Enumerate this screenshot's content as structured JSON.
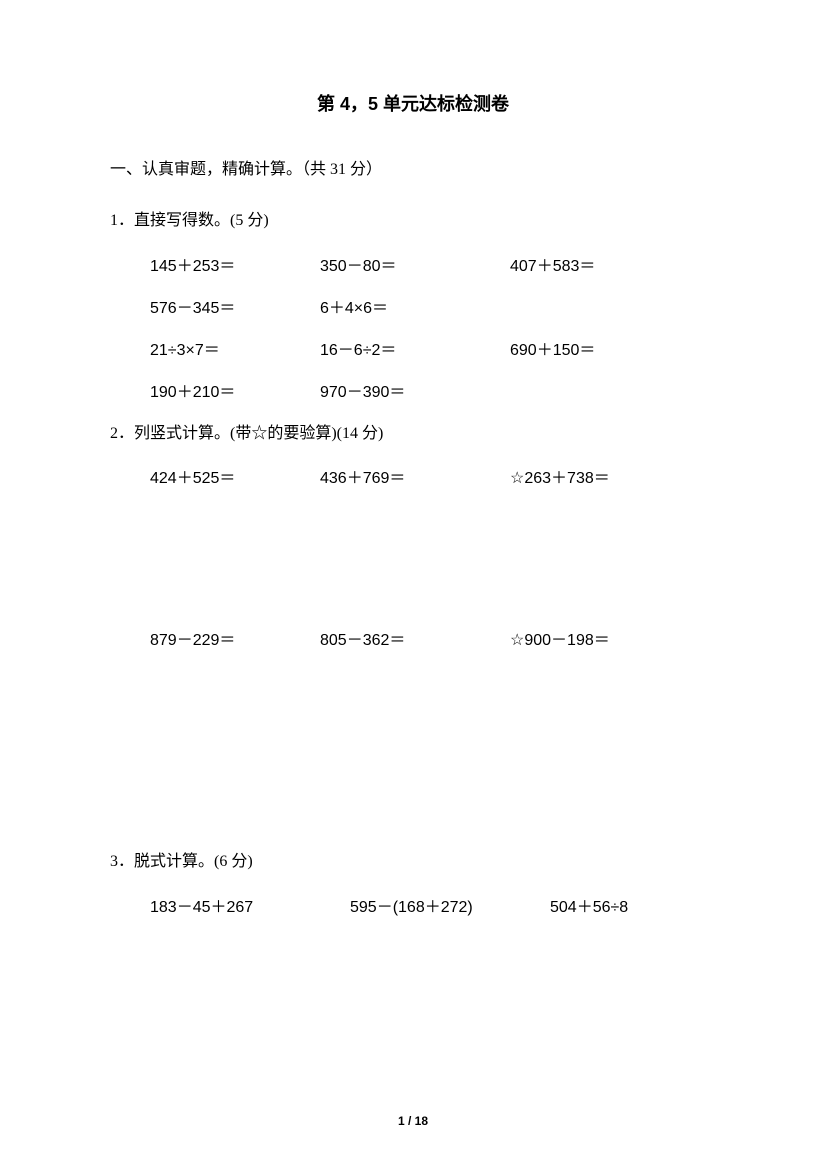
{
  "title": "第 4，5 单元达标检测卷",
  "section1": {
    "heading": "一、认真审题，精确计算。（共 31 分）",
    "q1": {
      "label": "1．直接写得数。(5 分)",
      "rows": [
        [
          "145＋253＝",
          "350－80＝",
          "407＋583＝"
        ],
        [
          "576－345＝",
          "6＋4×6＝",
          ""
        ],
        [
          "21÷3×7＝",
          "16－6÷2＝",
          "690＋150＝"
        ],
        [
          "190＋210＝",
          "970－390＝",
          ""
        ]
      ]
    },
    "q2": {
      "label": "2．列竖式计算。(带☆的要验算)(14 分)",
      "rows": [
        [
          "424＋525＝",
          "436＋769＝",
          "☆263＋738＝"
        ],
        [
          "879－229＝",
          "805－362＝",
          "☆900－198＝"
        ]
      ]
    },
    "q3": {
      "label": "3．脱式计算。(6 分)",
      "rows": [
        [
          "183－45＋267",
          "595－(168＋272)",
          "504＋56÷8"
        ]
      ]
    }
  },
  "footer": "1 / 18"
}
